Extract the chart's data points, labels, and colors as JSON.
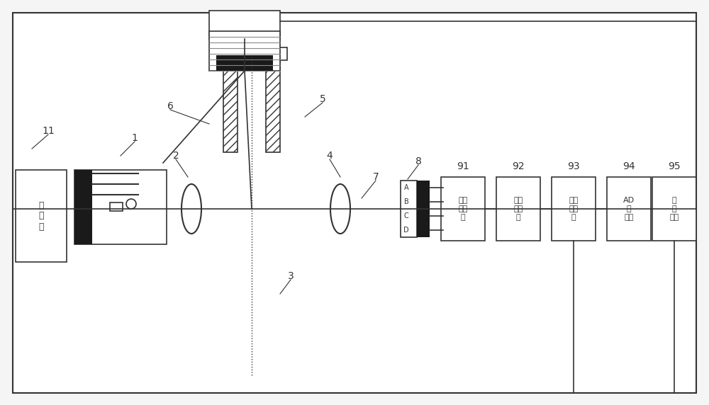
{
  "bg_color": "#f5f5f5",
  "border_color": "#333333",
  "line_color": "#333333",
  "box_fill": "#ffffff",
  "black_fill": "#1a1a1a",
  "hatch_color": "#555555",
  "label_11": "11",
  "label_1": "1",
  "label_2": "2",
  "label_3": "3",
  "label_4": "4",
  "label_5": "5",
  "label_6": "6",
  "label_7": "7",
  "label_8": "8",
  "label_91": "91",
  "label_92": "92",
  "label_93": "93",
  "label_94": "94",
  "label_95": "95",
  "box_11_text": "灯\n电\n源",
  "box_91_text": "前置\n放大\n器",
  "box_92_text": "带通\n滤波\n器",
  "box_93_text": "同步\n解调\n器",
  "box_94_text": "AD\n转\n换器",
  "box_95_text": "控\n制\n系统",
  "detector_labels": [
    "A",
    "B",
    "C",
    "D"
  ]
}
